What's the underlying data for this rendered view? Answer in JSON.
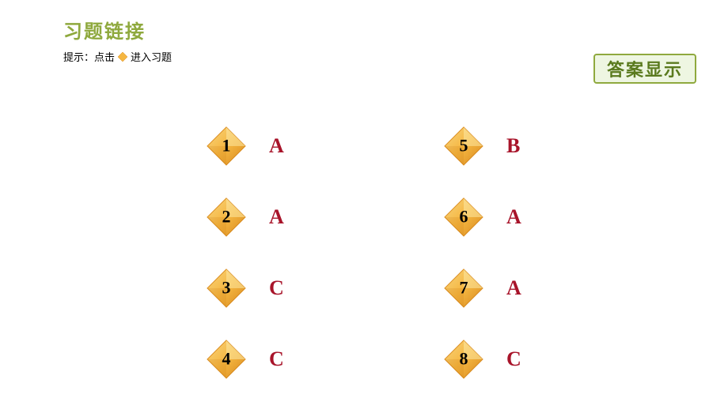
{
  "title": "习题链接",
  "hint_prefix": "提示：点击",
  "hint_suffix": "进入习题",
  "answer_button_label": "答案显示",
  "colors": {
    "title_color": "#8fa93e",
    "answer_text_color": "#a8142a",
    "button_bg": "#eef6e2",
    "button_border": "#8fa93e",
    "button_text": "#5a7a1e",
    "diamond_light": "#fbe39a",
    "diamond_mid": "#f5b742",
    "diamond_dark": "#d88a1e",
    "diamond_shadow": "#888888"
  },
  "left_items": [
    {
      "num": "1",
      "ans": "A"
    },
    {
      "num": "2",
      "ans": "A"
    },
    {
      "num": "3",
      "ans": "C"
    },
    {
      "num": "4",
      "ans": "C"
    }
  ],
  "right_items": [
    {
      "num": "5",
      "ans": "B"
    },
    {
      "num": "6",
      "ans": "A"
    },
    {
      "num": "7",
      "ans": "A"
    },
    {
      "num": "8",
      "ans": "C"
    }
  ]
}
